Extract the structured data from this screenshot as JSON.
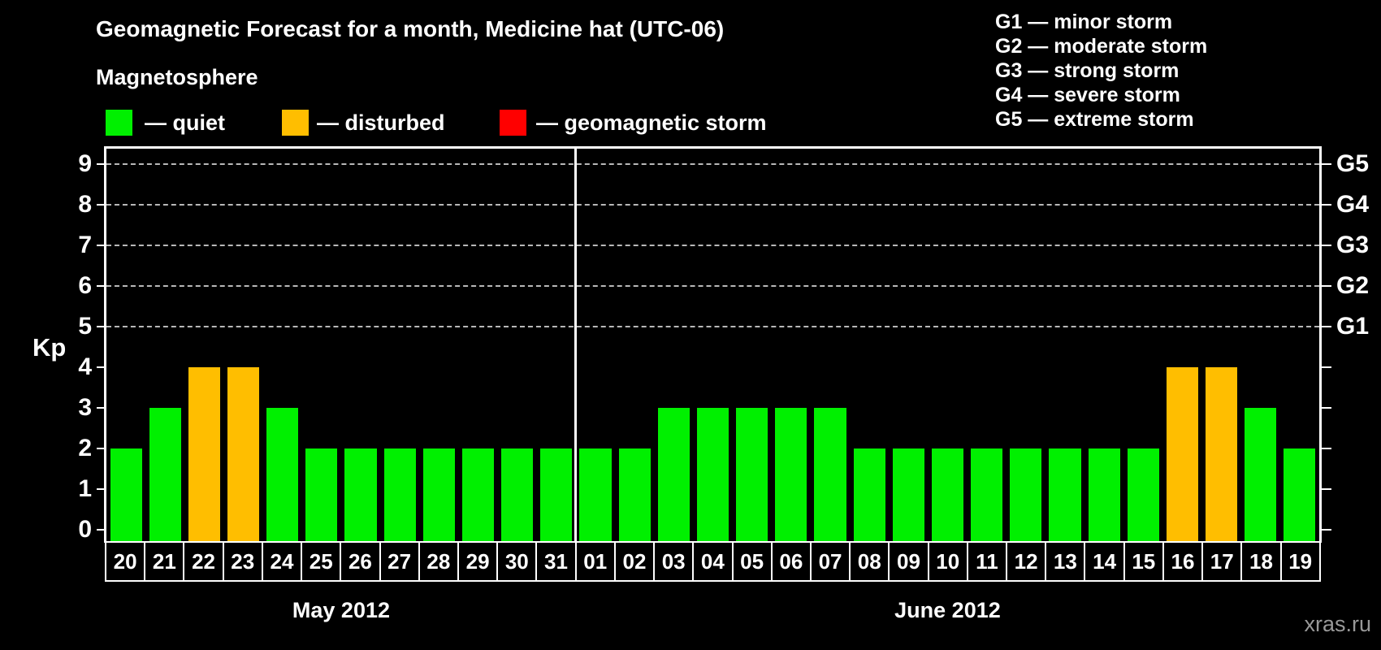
{
  "title": "Geomagnetic Forecast for a month, Medicine hat (UTC-06)",
  "legend": {
    "heading": "Magnetosphere",
    "items": [
      {
        "status": "quiet",
        "label": "— quiet",
        "color": "#00f000"
      },
      {
        "status": "disturbed",
        "label": "— disturbed",
        "color": "#ffbe00"
      },
      {
        "status": "storm",
        "label": "— geomagnetic storm",
        "color": "#ff0000"
      }
    ]
  },
  "storm_scale_legend": [
    "G1 — minor storm",
    "G2 — moderate storm",
    "G3 — strong storm",
    "G4 — severe storm",
    "G5 — extreme storm"
  ],
  "watermark": "xras.ru",
  "chart_data": {
    "type": "bar",
    "title": "Geomagnetic Forecast for a month, Medicine hat (UTC-06)",
    "ylabel": "Kp",
    "ylim": [
      0,
      9
    ],
    "yticks": [
      0,
      1,
      2,
      3,
      4,
      5,
      6,
      7,
      8,
      9
    ],
    "gridlines_at": [
      5,
      6,
      7,
      8,
      9
    ],
    "grid": "dashed",
    "right_axis": [
      {
        "kp": 5,
        "label": "G1"
      },
      {
        "kp": 6,
        "label": "G2"
      },
      {
        "kp": 7,
        "label": "G3"
      },
      {
        "kp": 8,
        "label": "G4"
      },
      {
        "kp": 9,
        "label": "G5"
      }
    ],
    "status_colors": {
      "quiet": "#00f000",
      "disturbed": "#ffbe00",
      "storm": "#ff0000"
    },
    "months": [
      {
        "label": "May 2012",
        "days": [
          {
            "day": "20",
            "kp": 2,
            "status": "quiet"
          },
          {
            "day": "21",
            "kp": 3,
            "status": "quiet"
          },
          {
            "day": "22",
            "kp": 4,
            "status": "disturbed"
          },
          {
            "day": "23",
            "kp": 4,
            "status": "disturbed"
          },
          {
            "day": "24",
            "kp": 3,
            "status": "quiet"
          },
          {
            "day": "25",
            "kp": 2,
            "status": "quiet"
          },
          {
            "day": "26",
            "kp": 2,
            "status": "quiet"
          },
          {
            "day": "27",
            "kp": 2,
            "status": "quiet"
          },
          {
            "day": "28",
            "kp": 2,
            "status": "quiet"
          },
          {
            "day": "29",
            "kp": 2,
            "status": "quiet"
          },
          {
            "day": "30",
            "kp": 2,
            "status": "quiet"
          },
          {
            "day": "31",
            "kp": 2,
            "status": "quiet"
          }
        ]
      },
      {
        "label": "June 2012",
        "days": [
          {
            "day": "01",
            "kp": 2,
            "status": "quiet"
          },
          {
            "day": "02",
            "kp": 2,
            "status": "quiet"
          },
          {
            "day": "03",
            "kp": 3,
            "status": "quiet"
          },
          {
            "day": "04",
            "kp": 3,
            "status": "quiet"
          },
          {
            "day": "05",
            "kp": 3,
            "status": "quiet"
          },
          {
            "day": "06",
            "kp": 3,
            "status": "quiet"
          },
          {
            "day": "07",
            "kp": 3,
            "status": "quiet"
          },
          {
            "day": "08",
            "kp": 2,
            "status": "quiet"
          },
          {
            "day": "09",
            "kp": 2,
            "status": "quiet"
          },
          {
            "day": "10",
            "kp": 2,
            "status": "quiet"
          },
          {
            "day": "11",
            "kp": 2,
            "status": "quiet"
          },
          {
            "day": "12",
            "kp": 2,
            "status": "quiet"
          },
          {
            "day": "13",
            "kp": 2,
            "status": "quiet"
          },
          {
            "day": "14",
            "kp": 2,
            "status": "quiet"
          },
          {
            "day": "15",
            "kp": 2,
            "status": "quiet"
          },
          {
            "day": "16",
            "kp": 4,
            "status": "disturbed"
          },
          {
            "day": "17",
            "kp": 4,
            "status": "disturbed"
          },
          {
            "day": "18",
            "kp": 3,
            "status": "quiet"
          },
          {
            "day": "19",
            "kp": 2,
            "status": "quiet"
          }
        ]
      }
    ]
  }
}
